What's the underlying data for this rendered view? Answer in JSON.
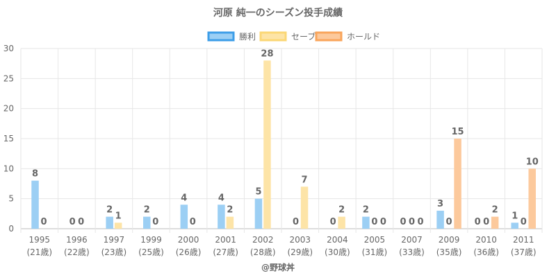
{
  "chart_data": {
    "type": "bar",
    "title": "河原 純一のシーズン投手成績",
    "credit": "@野球丼",
    "categories": [
      "1995",
      "1996",
      "1997",
      "1999",
      "2000",
      "2001",
      "2002",
      "2003",
      "2004",
      "2005",
      "2007",
      "2009",
      "2010",
      "2011"
    ],
    "category_sublabels": [
      "(21歳)",
      "(22歳)",
      "(23歳)",
      "(25歳)",
      "(26歳)",
      "(27歳)",
      "(28歳)",
      "(29歳)",
      "(30歳)",
      "(31歳)",
      "(33歳)",
      "(35歳)",
      "(36歳)",
      "(37歳)"
    ],
    "series": [
      {
        "name": "勝利",
        "color": "#9ccff4",
        "border": "#3d9ee8",
        "values": [
          8,
          0,
          2,
          2,
          4,
          4,
          5,
          0,
          0,
          2,
          0,
          3,
          0,
          1
        ]
      },
      {
        "name": "セーブ",
        "color": "#fde4a7",
        "border": "#fbd776",
        "values": [
          0,
          0,
          1,
          0,
          0,
          2,
          28,
          7,
          2,
          0,
          0,
          0,
          0,
          0
        ]
      },
      {
        "name": "ホールド",
        "color": "#fcc99c",
        "border": "#f9a55b",
        "values": [
          null,
          null,
          null,
          null,
          null,
          null,
          null,
          null,
          null,
          0,
          0,
          15,
          2,
          10
        ]
      }
    ],
    "ylim": [
      0,
      30
    ],
    "yticks": [
      0,
      5,
      10,
      15,
      20,
      25,
      30
    ],
    "legend_position": "top-center",
    "grid": true
  }
}
